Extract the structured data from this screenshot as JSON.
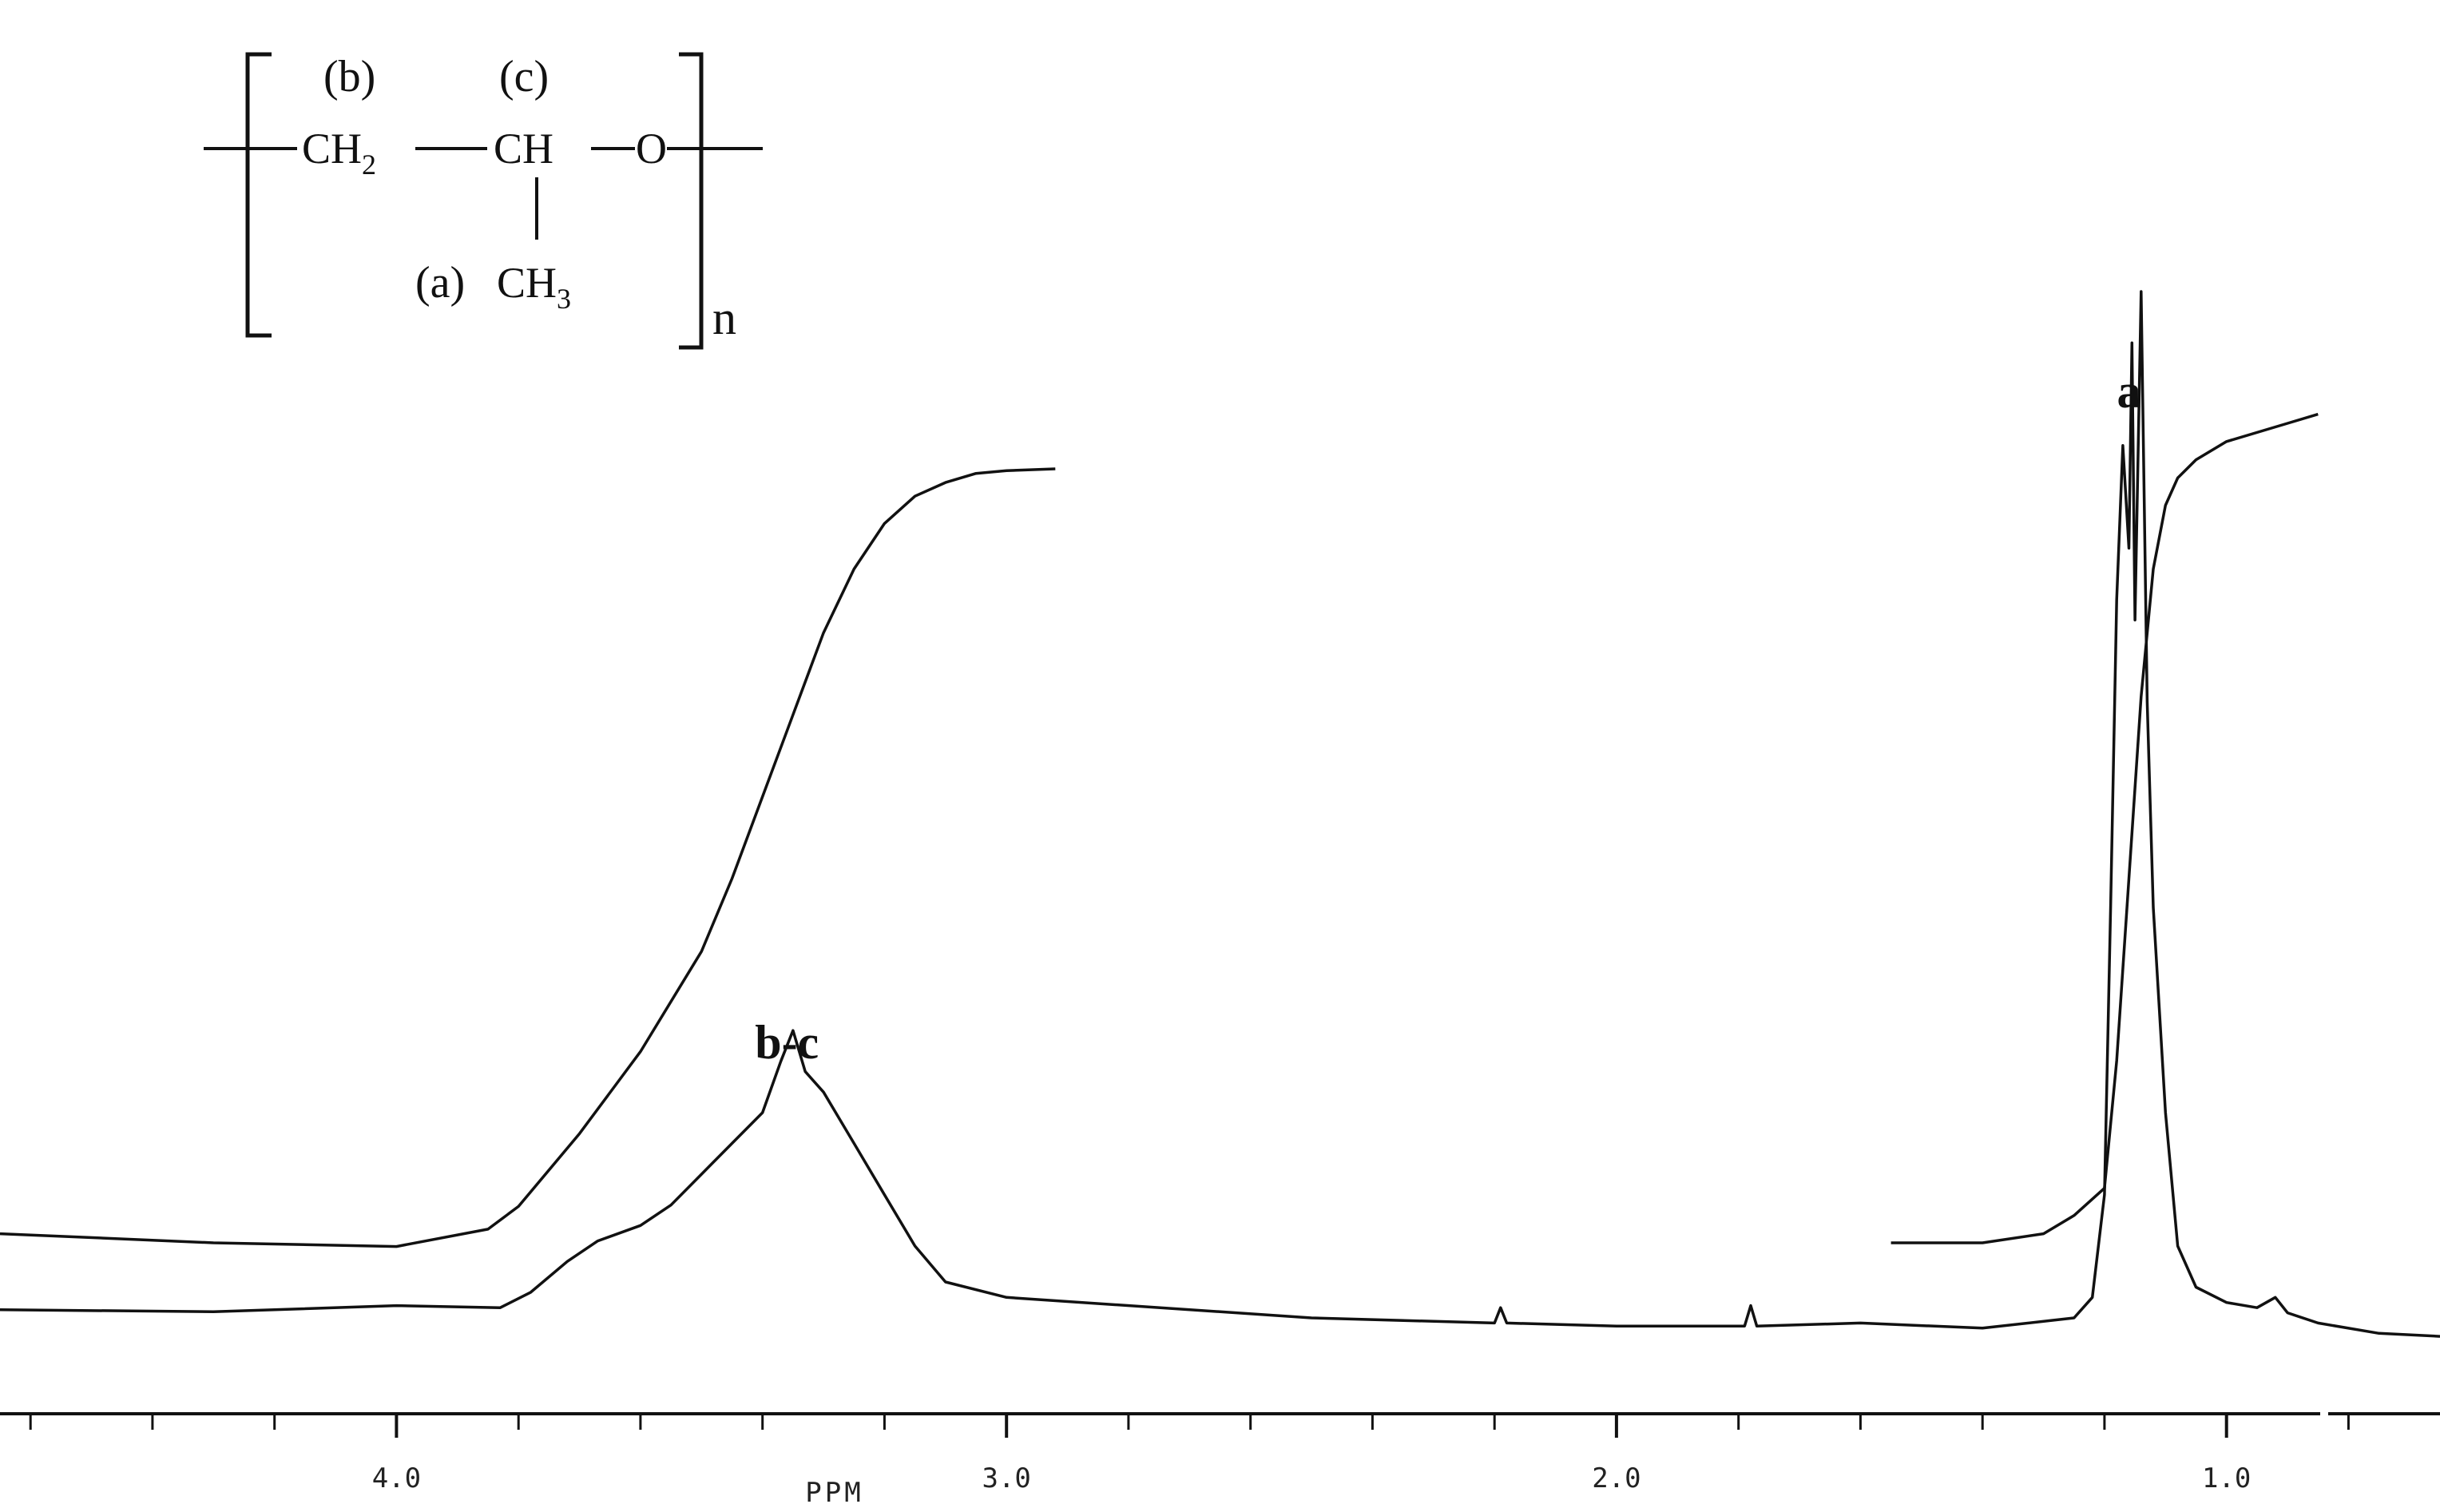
{
  "structure": {
    "label_b": "(b)",
    "label_c": "(c)",
    "group_ch2": "CH",
    "group_ch2_sub": "2",
    "group_ch": "CH",
    "group_o": "O",
    "label_a": "(a)",
    "group_ch3": "CH",
    "group_ch3_sub": "3",
    "repeat_n": "n"
  },
  "chart_data": {
    "type": "line",
    "xlabel": "PPM",
    "xlim": [
      4.65,
      0.65
    ],
    "ylabel": "",
    "grid": false,
    "legend": "none",
    "x_tick_labels": [
      "4.0",
      "3.0",
      "2.0",
      "1.0"
    ],
    "x_tick_values": [
      4.0,
      3.0,
      2.0,
      1.0
    ],
    "x_minor_ticks": [
      4.6,
      4.4,
      4.2,
      3.8,
      3.6,
      3.4,
      3.2,
      2.8,
      2.6,
      2.4,
      2.2,
      1.8,
      1.6,
      1.4,
      1.2,
      0.8
    ],
    "annotations": [
      {
        "text": "b-c",
        "x": 3.36
      },
      {
        "text": "a",
        "x": 1.16
      }
    ],
    "series": [
      {
        "role": "spectrum",
        "x": [
          4.65,
          4.3,
          4.0,
          3.83,
          3.78,
          3.72,
          3.67,
          3.6,
          3.55,
          3.5,
          3.45,
          3.4,
          3.37,
          3.35,
          3.33,
          3.3,
          3.25,
          3.2,
          3.15,
          3.1,
          3.0,
          2.5,
          2.2,
          2.19,
          2.18,
          2.0,
          1.79,
          1.78,
          1.77,
          1.6,
          1.4,
          1.25,
          1.22,
          1.2,
          1.19,
          1.18,
          1.17,
          1.16,
          1.155,
          1.15,
          1.14,
          1.13,
          1.12,
          1.1,
          1.08,
          1.05,
          1.0,
          0.95,
          0.92,
          0.9,
          0.85,
          0.75,
          0.65
        ],
        "y": [
          0.008,
          0.006,
          0.012,
          0.01,
          0.025,
          0.055,
          0.075,
          0.09,
          0.11,
          0.14,
          0.17,
          0.2,
          0.25,
          0.28,
          0.24,
          0.22,
          0.17,
          0.12,
          0.07,
          0.035,
          0.02,
          0.0,
          -0.005,
          0.01,
          -0.005,
          -0.008,
          -0.008,
          0.012,
          -0.008,
          -0.005,
          -0.01,
          0.0,
          0.02,
          0.12,
          0.4,
          0.7,
          0.85,
          0.75,
          0.95,
          0.68,
          1.0,
          0.6,
          0.4,
          0.2,
          0.07,
          0.03,
          0.015,
          0.01,
          0.02,
          0.005,
          -0.005,
          -0.015,
          -0.018
        ]
      },
      {
        "role": "integral",
        "x": [
          4.65,
          4.3,
          4.0,
          3.85,
          3.8,
          3.7,
          3.6,
          3.5,
          3.45,
          3.4,
          3.35,
          3.3,
          3.25,
          3.2,
          3.15,
          3.1,
          3.05,
          3.0,
          2.92
        ],
        "y": [
          0.11,
          0.1,
          0.096,
          0.115,
          0.14,
          0.22,
          0.31,
          0.42,
          0.5,
          0.59,
          0.68,
          0.77,
          0.84,
          0.89,
          0.92,
          0.935,
          0.945,
          0.948,
          0.95
        ]
      },
      {
        "role": "integral",
        "x": [
          1.55,
          1.4,
          1.3,
          1.25,
          1.2,
          1.18,
          1.16,
          1.14,
          1.12,
          1.1,
          1.08,
          1.05,
          1.0,
          0.9,
          0.85
        ],
        "y": [
          0.1,
          0.1,
          0.11,
          0.13,
          0.16,
          0.3,
          0.5,
          0.7,
          0.84,
          0.91,
          0.94,
          0.96,
          0.98,
          1.0,
          1.01
        ]
      }
    ]
  }
}
